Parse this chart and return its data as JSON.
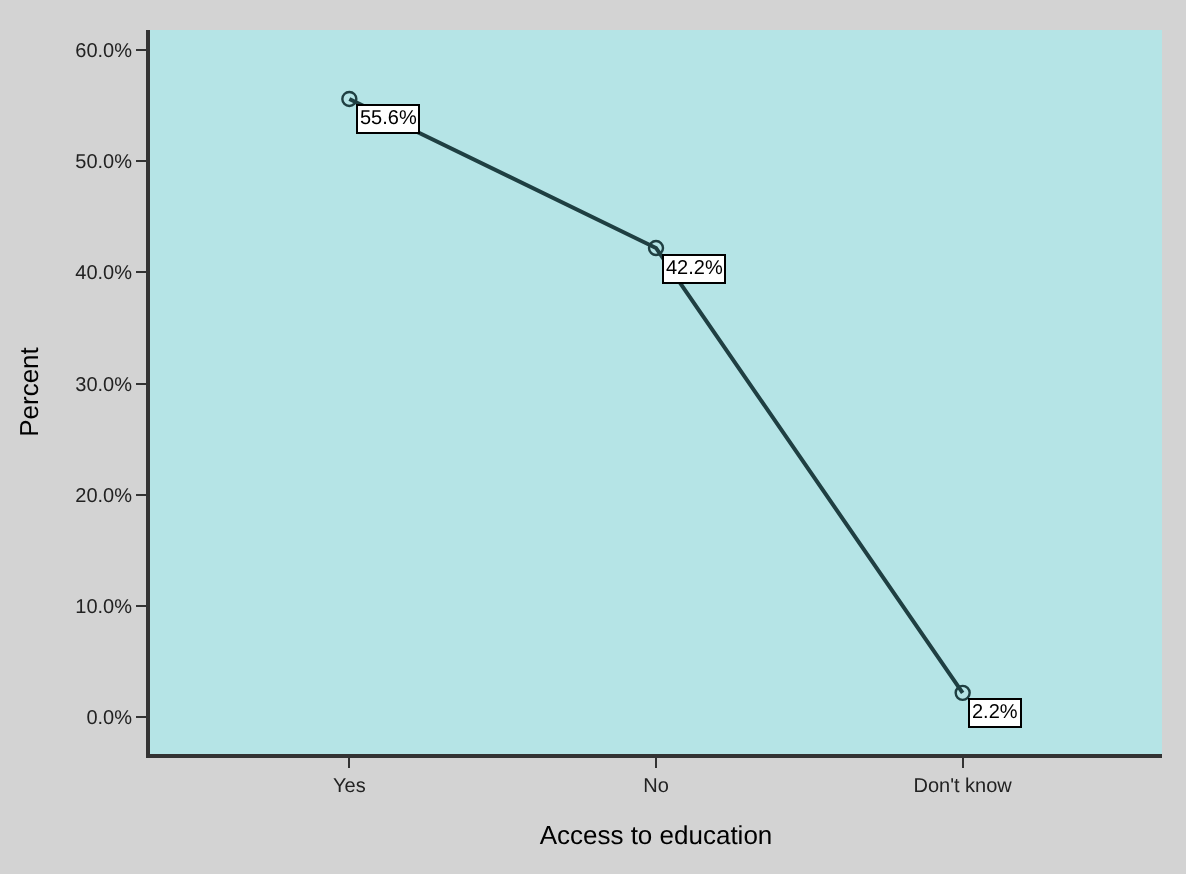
{
  "chart_data": {
    "type": "line",
    "xlabel": "Access to education",
    "ylabel": "Percent",
    "categories": [
      "Yes",
      "No",
      "Don't know"
    ],
    "series": [
      {
        "color": "#1f3f42",
        "values": [
          55.6,
          42.2,
          2.2
        ],
        "value_labels": [
          "55.6%",
          "42.2%",
          "2.2%"
        ]
      }
    ],
    "ylim": [
      -3.3,
      61.8
    ],
    "yticks": [
      {
        "value": 0,
        "label": "0.0%"
      },
      {
        "value": 10,
        "label": "10.0%"
      },
      {
        "value": 20,
        "label": "20.0%"
      },
      {
        "value": 30,
        "label": "30.0%"
      },
      {
        "value": 40,
        "label": "40.0%"
      },
      {
        "value": 50,
        "label": "50.0%"
      },
      {
        "value": 60,
        "label": "60.0%"
      }
    ],
    "marker": "circle",
    "line_style": "solid",
    "grid": false,
    "legend": false
  }
}
